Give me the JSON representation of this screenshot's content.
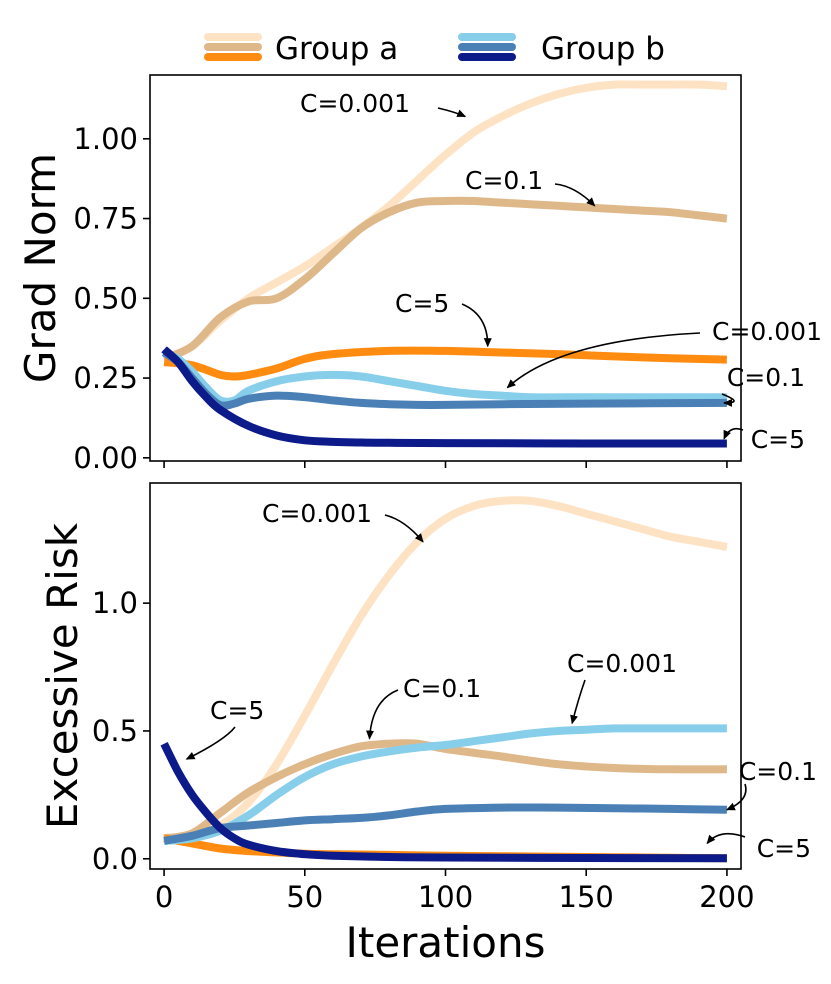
{
  "chart_data": {
    "type": "line",
    "xlabel": "Iterations",
    "xlim": [
      -5,
      205
    ],
    "xticks": [
      0,
      50,
      100,
      150,
      200
    ],
    "legend": {
      "location": "top-center",
      "entries": [
        {
          "label": "Group a",
          "colors": [
            "#fde3c4",
            "#dfb88a",
            "#ff8c10"
          ]
        },
        {
          "label": "Group b",
          "colors": [
            "#87ceeb",
            "#4a80b5",
            "#0c1a8a"
          ]
        }
      ]
    },
    "panels": [
      {
        "name": "grad-norm",
        "ylabel": "Grad Norm",
        "ylim": [
          -0.01,
          1.2
        ],
        "yticks": [
          0.0,
          0.25,
          0.5,
          0.75,
          1.0
        ],
        "ytick_labels": [
          "0.00",
          "0.25",
          "0.50",
          "0.75",
          "1.00"
        ],
        "series": [
          {
            "group": "Group a",
            "C": "0.001",
            "color": "#fde3c4",
            "x": [
              0,
              10,
              20,
              30,
              40,
              50,
              60,
              70,
              80,
              90,
              100,
              110,
              120,
              130,
              140,
              150,
              160,
              170,
              180,
              190,
              200
            ],
            "y": [
              0.31,
              0.35,
              0.43,
              0.5,
              0.55,
              0.6,
              0.66,
              0.72,
              0.79,
              0.87,
              0.95,
              1.02,
              1.07,
              1.11,
              1.14,
              1.16,
              1.17,
              1.17,
              1.17,
              1.17,
              1.165
            ]
          },
          {
            "group": "Group a",
            "C": "0.1",
            "color": "#dfb88a",
            "x": [
              0,
              10,
              20,
              30,
              40,
              50,
              60,
              70,
              80,
              90,
              100,
              110,
              120,
              130,
              140,
              150,
              160,
              170,
              180,
              190,
              200
            ],
            "y": [
              0.31,
              0.35,
              0.44,
              0.49,
              0.5,
              0.56,
              0.64,
              0.72,
              0.77,
              0.8,
              0.805,
              0.805,
              0.8,
              0.795,
              0.79,
              0.785,
              0.78,
              0.775,
              0.77,
              0.76,
              0.75
            ]
          },
          {
            "group": "Group a",
            "C": "5",
            "color": "#ff8c10",
            "x": [
              0,
              10,
              20,
              25,
              30,
              40,
              50,
              60,
              80,
              100,
              120,
              140,
              160,
              180,
              200
            ],
            "y": [
              0.3,
              0.29,
              0.26,
              0.255,
              0.26,
              0.28,
              0.31,
              0.325,
              0.335,
              0.335,
              0.33,
              0.325,
              0.318,
              0.312,
              0.308
            ]
          },
          {
            "group": "Group b",
            "C": "0.001",
            "color": "#87ceeb",
            "x": [
              0,
              5,
              10,
              15,
              20,
              25,
              30,
              40,
              50,
              60,
              70,
              80,
              90,
              100,
              110,
              120,
              130,
              150,
              170,
              200
            ],
            "y": [
              0.33,
              0.31,
              0.27,
              0.22,
              0.18,
              0.18,
              0.21,
              0.24,
              0.255,
              0.26,
              0.255,
              0.24,
              0.225,
              0.21,
              0.2,
              0.195,
              0.19,
              0.19,
              0.19,
              0.19
            ]
          },
          {
            "group": "Group b",
            "C": "0.1",
            "color": "#4a80b5",
            "x": [
              0,
              5,
              10,
              15,
              20,
              25,
              30,
              40,
              50,
              60,
              70,
              80,
              90,
              100,
              120,
              150,
              200
            ],
            "y": [
              0.33,
              0.3,
              0.25,
              0.2,
              0.165,
              0.17,
              0.185,
              0.195,
              0.19,
              0.18,
              0.172,
              0.168,
              0.166,
              0.166,
              0.168,
              0.17,
              0.172
            ]
          },
          {
            "group": "Group b",
            "C": "5",
            "color": "#0c1a8a",
            "x": [
              0,
              5,
              10,
              15,
              20,
              30,
              40,
              50,
              60,
              70,
              80,
              100,
              150,
              200
            ],
            "y": [
              0.34,
              0.3,
              0.24,
              0.19,
              0.15,
              0.1,
              0.07,
              0.055,
              0.05,
              0.048,
              0.047,
              0.046,
              0.045,
              0.045
            ]
          }
        ],
        "annotations": [
          {
            "text": "C=0.001",
            "target_x": 107,
            "target_y": 1.07
          },
          {
            "text": "C=0.1",
            "target_x": 153,
            "target_y": 0.79
          },
          {
            "text": "C=5",
            "target_x": 115,
            "target_y": 0.35
          },
          {
            "text": "C=0.001",
            "target_x": 122,
            "target_y": 0.22
          },
          {
            "text": "C=0.1",
            "target_x": 199,
            "target_y": 0.172
          },
          {
            "text": "C=5",
            "target_x": 199,
            "target_y": 0.06
          }
        ]
      },
      {
        "name": "excessive-risk",
        "ylabel": "Excessive Risk",
        "ylim": [
          -0.04,
          1.47
        ],
        "yticks": [
          0.0,
          0.5,
          1.0
        ],
        "ytick_labels": [
          "0.0",
          "0.5",
          "1.0"
        ],
        "series": [
          {
            "group": "Group a",
            "C": "0.001",
            "color": "#fde3c4",
            "x": [
              0,
              10,
              20,
              30,
              40,
              50,
              60,
              70,
              80,
              90,
              100,
              110,
              120,
              130,
              140,
              150,
              160,
              170,
              180,
              190,
              200
            ],
            "y": [
              0.08,
              0.09,
              0.13,
              0.22,
              0.37,
              0.56,
              0.76,
              0.95,
              1.11,
              1.24,
              1.33,
              1.38,
              1.4,
              1.4,
              1.38,
              1.35,
              1.32,
              1.29,
              1.26,
              1.24,
              1.22
            ]
          },
          {
            "group": "Group a",
            "C": "0.1",
            "color": "#dfb88a",
            "x": [
              0,
              10,
              20,
              30,
              40,
              50,
              60,
              70,
              80,
              90,
              100,
              120,
              140,
              160,
              180,
              200
            ],
            "y": [
              0.08,
              0.1,
              0.18,
              0.26,
              0.32,
              0.37,
              0.41,
              0.44,
              0.45,
              0.45,
              0.43,
              0.4,
              0.37,
              0.355,
              0.35,
              0.35
            ]
          },
          {
            "group": "Group a",
            "C": "5",
            "color": "#ff8c10",
            "x": [
              0,
              10,
              20,
              30,
              40,
              50,
              60,
              80,
              100,
              120,
              140,
              160,
              180,
              200
            ],
            "y": [
              0.08,
              0.06,
              0.04,
              0.03,
              0.025,
              0.02,
              0.018,
              0.015,
              0.012,
              0.01,
              0.008,
              0.006,
              0.004,
              0.002
            ]
          },
          {
            "group": "Group b",
            "C": "0.001",
            "color": "#87ceeb",
            "x": [
              0,
              10,
              20,
              30,
              40,
              50,
              60,
              70,
              80,
              90,
              100,
              110,
              120,
              130,
              140,
              150,
              160,
              170,
              180,
              190,
              200
            ],
            "y": [
              0.07,
              0.08,
              0.11,
              0.17,
              0.25,
              0.32,
              0.37,
              0.4,
              0.42,
              0.435,
              0.445,
              0.46,
              0.475,
              0.49,
              0.5,
              0.505,
              0.51,
              0.51,
              0.51,
              0.51,
              0.51
            ]
          },
          {
            "group": "Group b",
            "C": "0.1",
            "color": "#4a80b5",
            "x": [
              0,
              10,
              20,
              30,
              40,
              50,
              60,
              70,
              80,
              90,
              100,
              120,
              140,
              160,
              180,
              200
            ],
            "y": [
              0.07,
              0.09,
              0.12,
              0.13,
              0.14,
              0.15,
              0.155,
              0.16,
              0.17,
              0.185,
              0.195,
              0.2,
              0.2,
              0.198,
              0.195,
              0.192
            ]
          },
          {
            "group": "Group b",
            "C": "5",
            "color": "#0c1a8a",
            "x": [
              0,
              5,
              10,
              15,
              20,
              25,
              30,
              40,
              50,
              60,
              80,
              100,
              150,
              200
            ],
            "y": [
              0.45,
              0.34,
              0.25,
              0.18,
              0.12,
              0.08,
              0.055,
              0.03,
              0.018,
              0.012,
              0.007,
              0.005,
              0.003,
              0.002
            ]
          }
        ],
        "annotations": [
          {
            "text": "C=0.001",
            "target_x": 92,
            "target_y": 1.24
          },
          {
            "text": "C=0.1",
            "target_x": 73,
            "target_y": 0.47
          },
          {
            "text": "C=5",
            "target_x": 8,
            "target_y": 0.39
          },
          {
            "text": "C=0.001",
            "target_x": 145,
            "target_y": 0.53
          },
          {
            "text": "C=0.1",
            "target_x": 200,
            "target_y": 0.192
          },
          {
            "text": "C=5",
            "target_x": 193,
            "target_y": 0.06
          }
        ]
      }
    ]
  }
}
